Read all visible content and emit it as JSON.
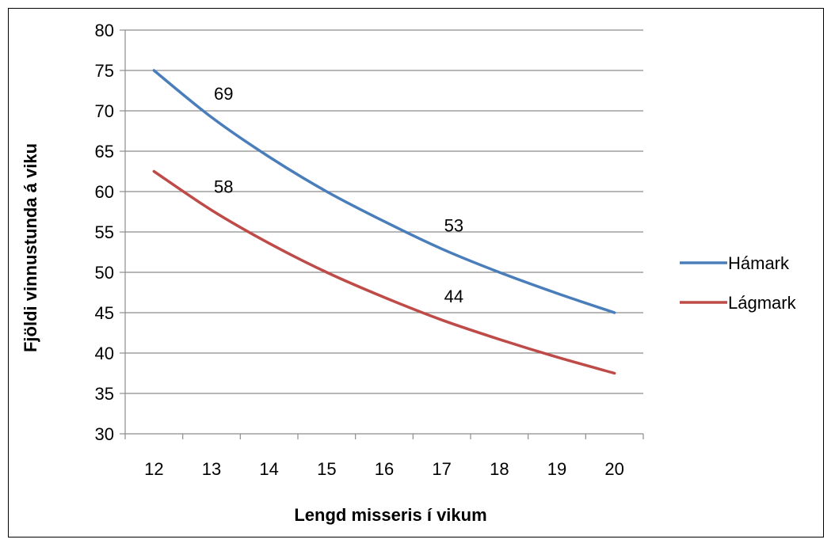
{
  "chart_data": {
    "type": "line",
    "x": [
      12,
      13,
      14,
      15,
      16,
      17,
      18,
      19,
      20
    ],
    "categories": [
      "12",
      "13",
      "14",
      "15",
      "16",
      "17",
      "18",
      "19",
      "20"
    ],
    "xlabel": "Lengd misseris í vikum",
    "ylabel": "Fjöldi vinnustunda á viku",
    "ylim": [
      30,
      80
    ],
    "yticks": [
      30,
      35,
      40,
      45,
      50,
      55,
      60,
      65,
      70,
      75,
      80
    ],
    "grid": true,
    "legend_position": "right",
    "series": [
      {
        "name": "Hámark",
        "color": "#4a7ebb",
        "values": [
          75,
          69.2,
          64.3,
          60,
          56.3,
          52.9,
          50,
          47.4,
          45
        ]
      },
      {
        "name": "Lágmark",
        "color": "#be4b48",
        "values": [
          62.5,
          57.7,
          53.6,
          50,
          46.9,
          44.1,
          41.7,
          39.5,
          37.5
        ]
      }
    ],
    "annotations": [
      {
        "text": "69",
        "series": 0,
        "x": 13
      },
      {
        "text": "53",
        "series": 0,
        "x": 17
      },
      {
        "text": "58",
        "series": 1,
        "x": 13
      },
      {
        "text": "44",
        "series": 1,
        "x": 17
      }
    ]
  }
}
